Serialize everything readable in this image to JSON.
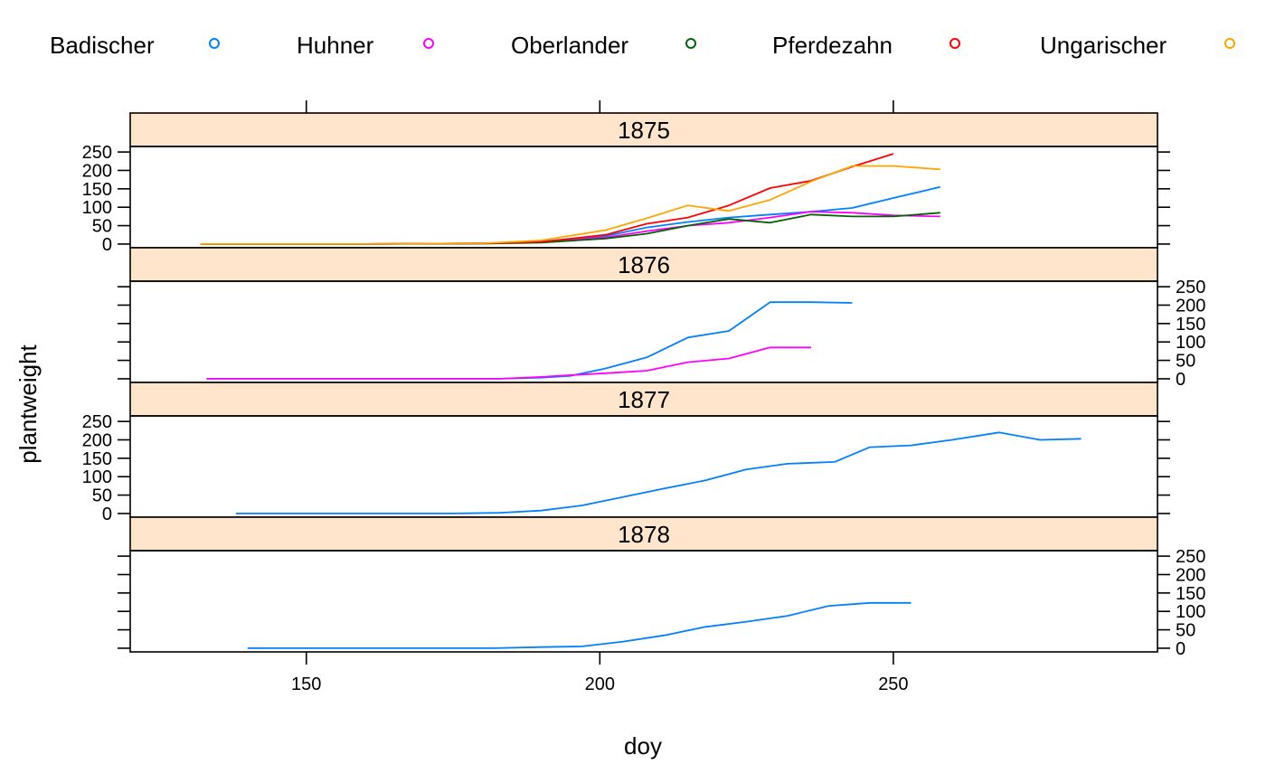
{
  "chart_data": {
    "type": "line",
    "xlabel": "doy",
    "ylabel": "plantweight",
    "xlim": [
      120,
      295
    ],
    "ylim": [
      -10,
      265
    ],
    "x_ticks": [
      150,
      200,
      250
    ],
    "y_ticks": [
      0,
      50,
      100,
      150,
      200,
      250
    ],
    "legend_position": "top",
    "legend": [
      {
        "name": "Badischer",
        "color": "#0080ff"
      },
      {
        "name": "Huhner",
        "color": "#ff00ff"
      },
      {
        "name": "Oberlander",
        "color": "#006400"
      },
      {
        "name": "Pferdezahn",
        "color": "#ff0000"
      },
      {
        "name": "Ungarischer",
        "color": "#ffa500"
      }
    ],
    "panels": [
      {
        "strip": "1875",
        "series": [
          {
            "name": "Badischer",
            "x": [
              132,
              160,
              180,
              190,
              201,
              208,
              215,
              222,
              229,
              236,
              243,
              250,
              258
            ],
            "y": [
              0,
              0,
              2,
              7,
              22,
              45,
              60,
              72,
              80,
              88,
              98,
              125,
              155
            ]
          },
          {
            "name": "Huhner",
            "x": [
              132,
              160,
              180,
              190,
              201,
              208,
              215,
              222,
              229,
              236,
              243,
              250,
              258
            ],
            "y": [
              0,
              0,
              2,
              5,
              18,
              35,
              50,
              58,
              72,
              88,
              85,
              78,
              75
            ]
          },
          {
            "name": "Oberlander",
            "x": [
              132,
              160,
              180,
              190,
              201,
              208,
              215,
              222,
              229,
              236,
              243,
              250,
              258
            ],
            "y": [
              0,
              0,
              1,
              4,
              15,
              28,
              50,
              68,
              58,
              80,
              75,
              75,
              85
            ]
          },
          {
            "name": "Pferdezahn",
            "x": [
              132,
              160,
              180,
              190,
              201,
              208,
              215,
              222,
              229,
              236,
              243,
              250
            ],
            "y": [
              0,
              0,
              2,
              6,
              25,
              55,
              72,
              105,
              152,
              172,
              210,
              245
            ]
          },
          {
            "name": "Ungarischer",
            "x": [
              132,
              160,
              180,
              190,
              201,
              208,
              215,
              222,
              229,
              236,
              243,
              250,
              258
            ],
            "y": [
              0,
              0,
              2,
              10,
              38,
              70,
              105,
              90,
              120,
              170,
              212,
              212,
              203
            ]
          }
        ]
      },
      {
        "strip": "1876",
        "series": [
          {
            "name": "Badischer",
            "x": [
              133,
              165,
              183,
              190,
              195,
              201,
              208,
              215,
              222,
              229,
              236,
              243
            ],
            "y": [
              0,
              0,
              0,
              3,
              8,
              28,
              58,
              112,
              130,
              208,
              208,
              206
            ]
          },
          {
            "name": "Huhner",
            "x": [
              133,
              165,
              183,
              190,
              195,
              201,
              208,
              215,
              222,
              229,
              236
            ],
            "y": [
              0,
              0,
              0,
              5,
              10,
              15,
              22,
              45,
              55,
              85,
              85
            ]
          }
        ]
      },
      {
        "strip": "1877",
        "series": [
          {
            "name": "Badischer",
            "x": [
              138,
              160,
              175,
              183,
              190,
              197,
              204,
              211,
              218,
              225,
              232,
              240,
              246,
              253,
              260,
              268,
              275,
              282
            ],
            "y": [
              0,
              0,
              0,
              2,
              8,
              22,
              45,
              68,
              90,
              120,
              135,
              140,
              180,
              185,
              200,
              220,
              200,
              203
            ]
          }
        ]
      },
      {
        "strip": "1878",
        "series": [
          {
            "name": "Badischer",
            "x": [
              140,
              160,
              182,
              190,
              197,
              204,
              211,
              218,
              225,
              232,
              239,
              246,
              253
            ],
            "y": [
              0,
              0,
              0,
              3,
              5,
              18,
              35,
              58,
              72,
              88,
              115,
              123,
              123
            ]
          }
        ]
      }
    ]
  }
}
